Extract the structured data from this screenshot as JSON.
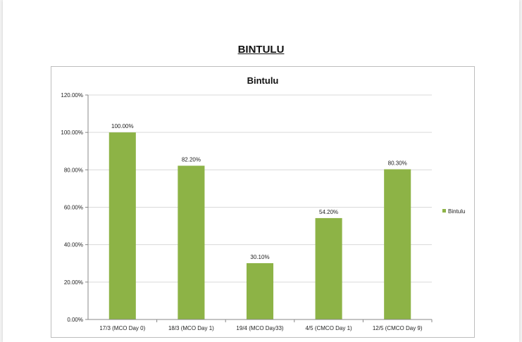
{
  "page": {
    "heading": "BINTULU"
  },
  "chart_data": {
    "type": "bar",
    "title": "Bintulu",
    "categories": [
      "17/3 (MCO Day 0)",
      "18/3 (MCO Day 1)",
      "19/4 (MCO Day33)",
      "4/5 (CMCO Day 1)",
      "12/5 (CMCO Day 9)"
    ],
    "series": [
      {
        "name": "Bintulu",
        "values": [
          100.0,
          82.2,
          30.1,
          54.2,
          80.3
        ],
        "data_labels": [
          "100.00%",
          "82.20%",
          "30.10%",
          "54.20%",
          "80.30%"
        ],
        "color": "#8db346"
      }
    ],
    "y_ticks": [
      "0.00%",
      "20.00%",
      "40.00%",
      "60.00%",
      "80.00%",
      "100.00%",
      "120.00%"
    ],
    "ylim": [
      0,
      120
    ],
    "y_step": 20,
    "grid": true,
    "legend": "right",
    "xlabel": "",
    "ylabel": "",
    "colors": {
      "bar": "#8db346",
      "grid": "#d9d9d9",
      "axis": "#888888"
    }
  }
}
